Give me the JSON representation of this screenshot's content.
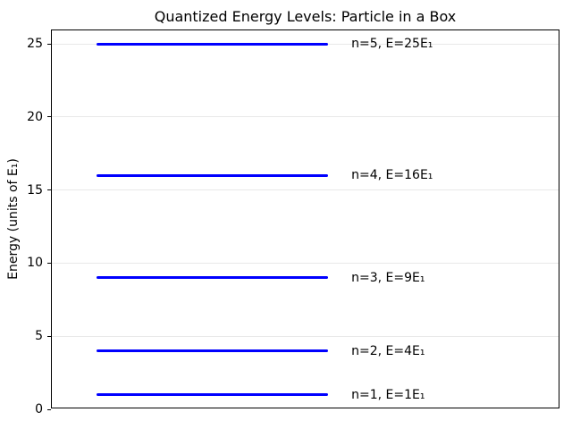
{
  "chart_data": {
    "type": "line",
    "title": "Quantized Energy Levels: Particle in a Box",
    "xlabel": "",
    "ylabel": "Energy (units of E₁)",
    "ylim": [
      0,
      25.92
    ],
    "yticks": [
      0,
      5,
      10,
      15,
      20,
      25
    ],
    "grid": "horizontal gridlines, light gray, on",
    "legend_position": "none",
    "x_axis_ticks": "none",
    "levels": [
      {
        "n": 1,
        "energy": 1,
        "label": "n=1, E=1E₁"
      },
      {
        "n": 2,
        "energy": 4,
        "label": "n=2, E=4E₁"
      },
      {
        "n": 3,
        "energy": 9,
        "label": "n=3, E=9E₁"
      },
      {
        "n": 4,
        "energy": 16,
        "label": "n=4, E=16E₁"
      },
      {
        "n": 5,
        "energy": 25,
        "label": "n=5, E=25E₁"
      }
    ],
    "line_color": "#0000ff",
    "line_x_fraction_start": 0.088,
    "line_x_fraction_end": 0.543,
    "label_x_fraction": 0.589
  }
}
